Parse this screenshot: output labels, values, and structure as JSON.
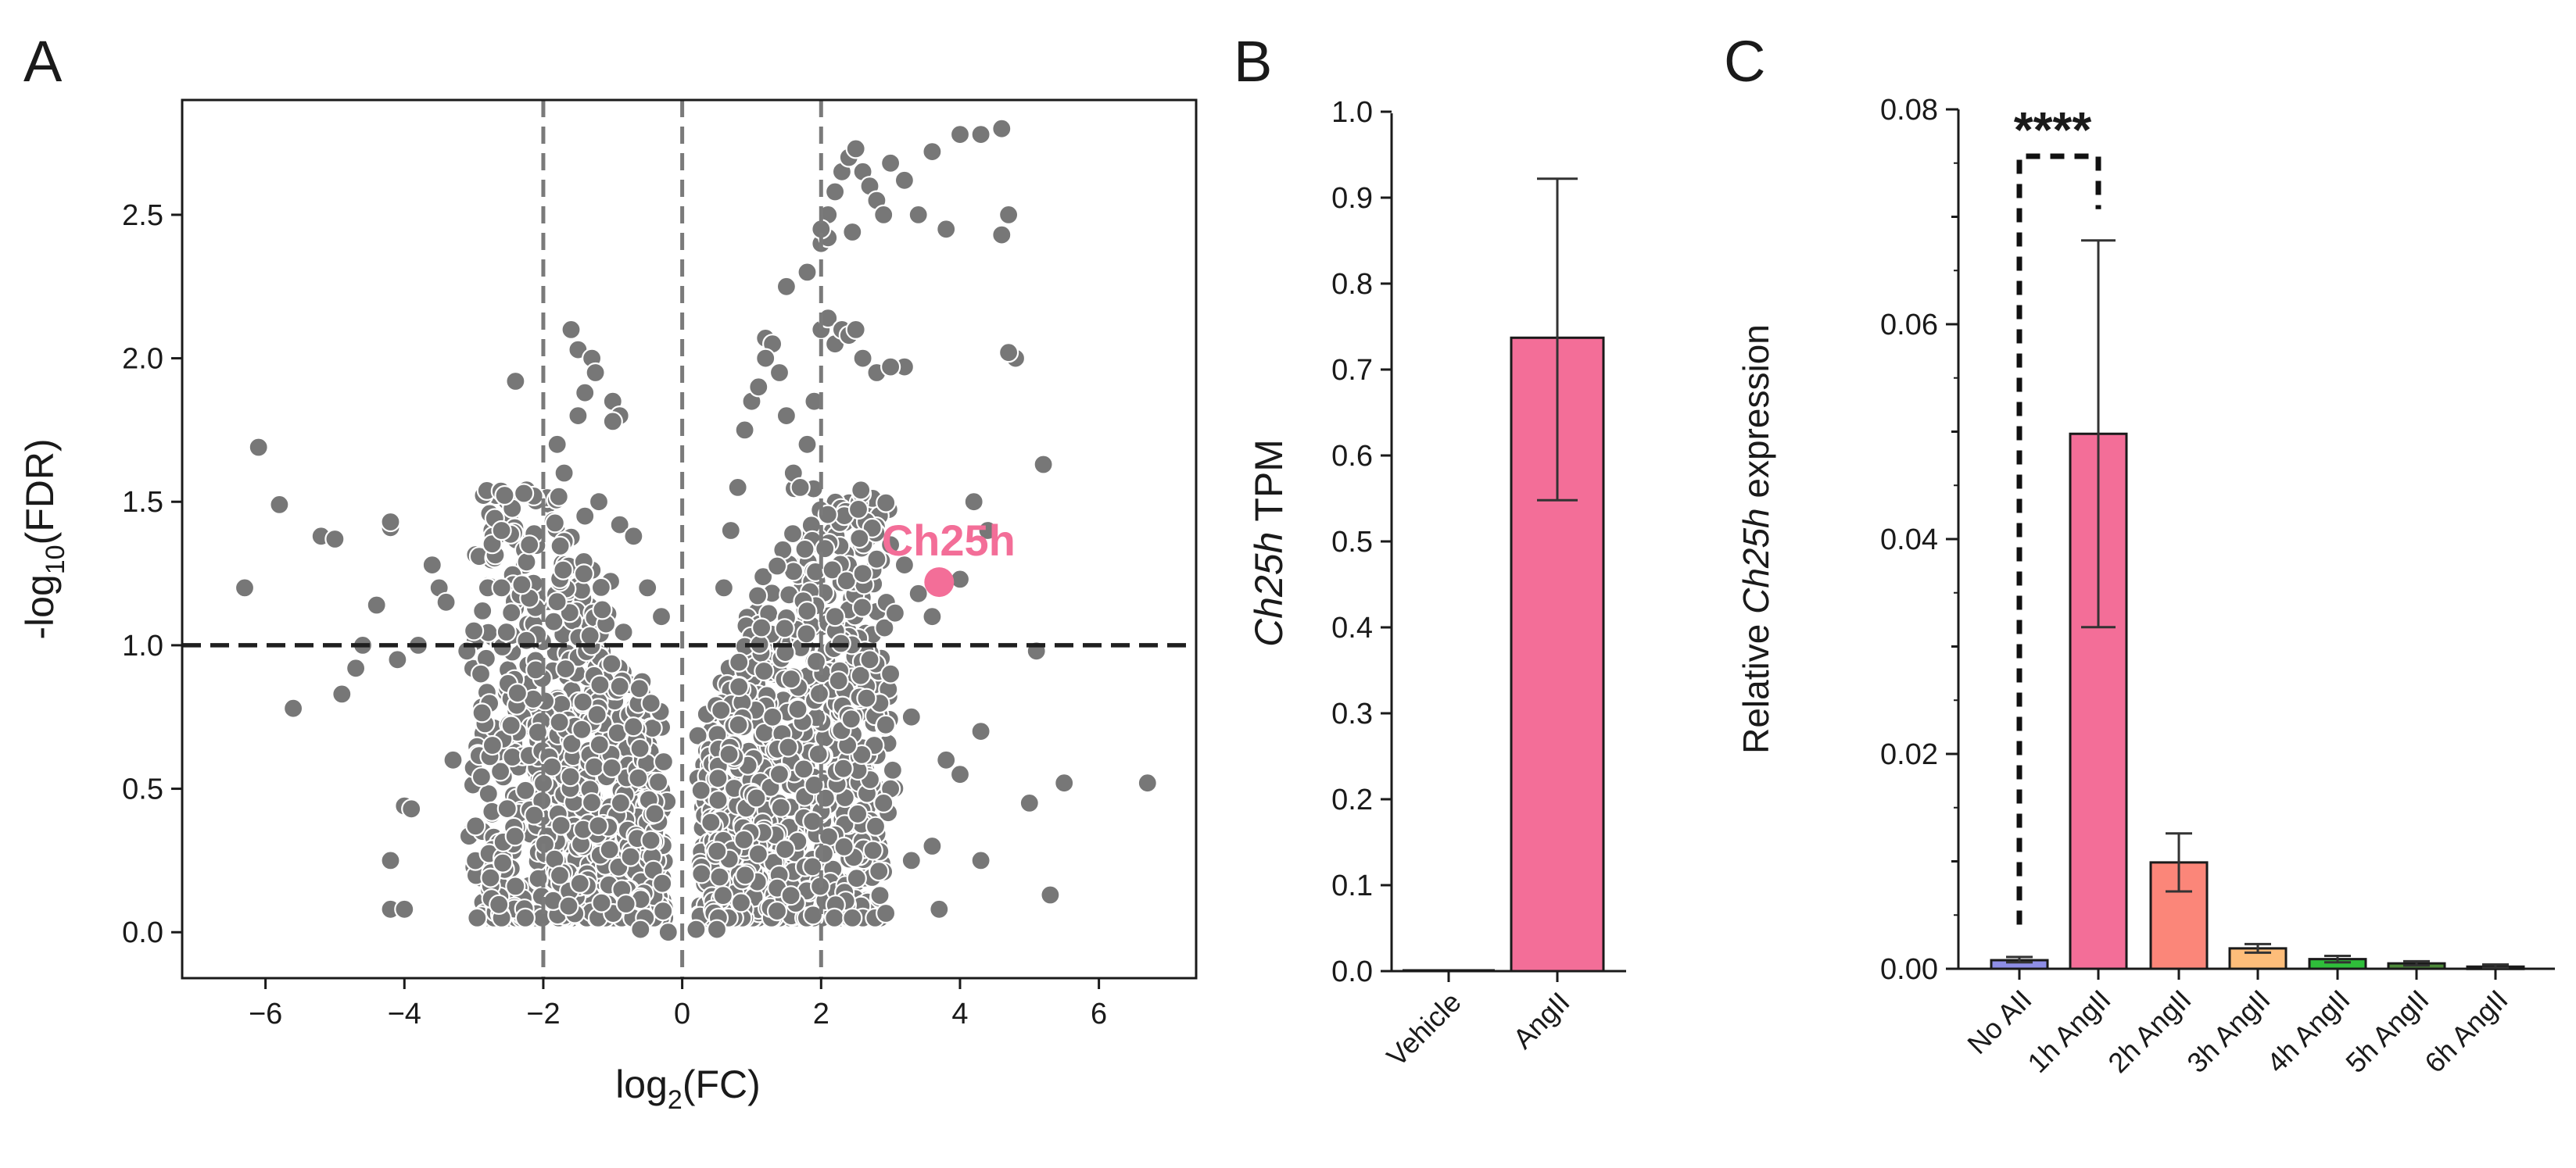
{
  "panels": {
    "a": {
      "letter": "A"
    },
    "b": {
      "letter": "B"
    },
    "c": {
      "letter": "C"
    }
  },
  "chart_data": [
    {
      "type": "scatter",
      "panel": "A",
      "xlabel_main": "log",
      "xlabel_sub": "2",
      "xlabel_tail": "(FC)",
      "ylabel_main": "-log",
      "ylabel_sub": "10",
      "ylabel_tail": "(FDR)",
      "xlim": [
        -7.2,
        7.4
      ],
      "ylim": [
        -0.16,
        2.9
      ],
      "xticks": [
        -6,
        -4,
        -2,
        0,
        2,
        4,
        6
      ],
      "xtick_labels": [
        "−6",
        "−4",
        "−2",
        "0",
        "2",
        "4",
        "6"
      ],
      "yticks": [
        0.0,
        0.5,
        1.0,
        1.5,
        2.0,
        2.5
      ],
      "ytick_labels": [
        "0.0",
        "0.5",
        "1.0",
        "1.5",
        "2.0",
        "2.5"
      ],
      "threshold_lines": {
        "x": [
          -2,
          0,
          2
        ],
        "y": 1.0
      },
      "point_color": "#777777",
      "highlight": {
        "label": "Ch25h",
        "x": 3.7,
        "y": 1.22,
        "color": "#f36e98"
      },
      "points": [
        [
          -6.3,
          1.2
        ],
        [
          -6.1,
          1.69
        ],
        [
          -5.8,
          1.49
        ],
        [
          -5.6,
          0.78
        ],
        [
          -5.2,
          1.38
        ],
        [
          -5.0,
          1.37
        ],
        [
          -4.9,
          0.83
        ],
        [
          -4.7,
          0.92
        ],
        [
          -4.6,
          1.0
        ],
        [
          -4.4,
          1.14
        ],
        [
          -4.2,
          1.41
        ],
        [
          -4.2,
          1.43
        ],
        [
          -4.1,
          0.95
        ],
        [
          -4.0,
          0.44
        ],
        [
          -3.9,
          0.43
        ],
        [
          -3.8,
          1.0
        ],
        [
          -4.2,
          0.25
        ],
        [
          -4.2,
          0.08
        ],
        [
          -4.0,
          0.08
        ],
        [
          -3.6,
          1.28
        ],
        [
          -3.5,
          1.2
        ],
        [
          -3.4,
          1.15
        ],
        [
          -3.3,
          0.6
        ],
        [
          -3.1,
          0.98
        ],
        [
          -3.0,
          1.05
        ],
        [
          -2.9,
          0.9
        ],
        [
          -2.8,
          1.2
        ],
        [
          -2.6,
          1.4
        ],
        [
          -2.4,
          1.92
        ],
        [
          -1.6,
          2.1
        ],
        [
          -1.5,
          2.03
        ],
        [
          -1.3,
          2.0
        ],
        [
          -1.25,
          1.95
        ],
        [
          -1.4,
          1.88
        ],
        [
          -1.5,
          1.8
        ],
        [
          -1.0,
          1.85
        ],
        [
          -0.9,
          1.8
        ],
        [
          -1.0,
          1.78
        ],
        [
          -1.8,
          1.7
        ],
        [
          -1.7,
          1.6
        ],
        [
          -1.4,
          1.45
        ],
        [
          -1.2,
          1.5
        ],
        [
          -0.9,
          1.42
        ],
        [
          -0.7,
          1.38
        ],
        [
          -0.5,
          1.2
        ],
        [
          -0.3,
          1.1
        ],
        [
          -2.2,
          1.35
        ],
        [
          -2.6,
          1.2
        ],
        [
          0.6,
          1.2
        ],
        [
          0.7,
          1.4
        ],
        [
          0.8,
          1.55
        ],
        [
          0.9,
          1.75
        ],
        [
          1.0,
          1.85
        ],
        [
          1.1,
          1.9
        ],
        [
          1.2,
          2.07
        ],
        [
          1.3,
          2.05
        ],
        [
          1.4,
          1.95
        ],
        [
          1.5,
          1.8
        ],
        [
          1.6,
          1.6
        ],
        [
          1.7,
          1.55
        ],
        [
          1.8,
          1.7
        ],
        [
          1.9,
          1.85
        ],
        [
          2.0,
          2.1
        ],
        [
          2.1,
          2.14
        ],
        [
          2.2,
          2.05
        ],
        [
          2.3,
          2.1
        ],
        [
          2.4,
          2.08
        ],
        [
          2.5,
          2.1
        ],
        [
          2.6,
          2.0
        ],
        [
          2.8,
          1.95
        ],
        [
          1.8,
          2.3
        ],
        [
          2.0,
          2.4
        ],
        [
          2.1,
          2.5
        ],
        [
          2.2,
          2.58
        ],
        [
          2.3,
          2.65
        ],
        [
          2.4,
          2.7
        ],
        [
          2.5,
          2.73
        ],
        [
          2.6,
          2.65
        ],
        [
          2.7,
          2.6
        ],
        [
          2.8,
          2.55
        ],
        [
          2.9,
          2.5
        ],
        [
          2.45,
          2.44
        ],
        [
          2.1,
          2.42
        ],
        [
          2.0,
          2.45
        ],
        [
          1.5,
          2.25
        ],
        [
          1.2,
          2.0
        ],
        [
          3.0,
          2.68
        ],
        [
          3.2,
          2.62
        ],
        [
          3.4,
          2.5
        ],
        [
          3.6,
          2.72
        ],
        [
          4.0,
          2.78
        ],
        [
          4.3,
          2.78
        ],
        [
          4.6,
          2.8
        ],
        [
          3.8,
          2.45
        ],
        [
          4.6,
          2.43
        ],
        [
          4.7,
          2.5
        ],
        [
          4.8,
          2.0
        ],
        [
          4.7,
          2.02
        ],
        [
          3.2,
          1.97
        ],
        [
          3.0,
          1.97
        ],
        [
          2.2,
          1.1
        ],
        [
          2.6,
          1.25
        ],
        [
          2.8,
          1.3
        ],
        [
          3.0,
          1.35
        ],
        [
          3.2,
          1.28
        ],
        [
          3.4,
          1.18
        ],
        [
          3.6,
          1.1
        ],
        [
          4.0,
          1.23
        ],
        [
          4.2,
          1.5
        ],
        [
          4.4,
          1.4
        ],
        [
          5.1,
          0.98
        ],
        [
          5.2,
          1.63
        ],
        [
          5.0,
          0.45
        ],
        [
          5.5,
          0.52
        ],
        [
          6.7,
          0.52
        ],
        [
          5.3,
          0.13
        ],
        [
          4.3,
          0.25
        ],
        [
          3.7,
          0.08
        ],
        [
          3.6,
          0.3
        ],
        [
          3.3,
          0.25
        ],
        [
          3.0,
          0.5
        ],
        [
          2.9,
          0.45
        ],
        [
          4.0,
          0.55
        ],
        [
          4.3,
          0.7
        ],
        [
          3.8,
          0.6
        ],
        [
          3.3,
          0.75
        ],
        [
          3.0,
          0.9
        ],
        [
          2.7,
          0.95
        ],
        [
          -0.2,
          0.0
        ],
        [
          0.2,
          0.01
        ],
        [
          0.5,
          0.01
        ],
        [
          -0.6,
          0.01
        ]
      ]
    },
    {
      "type": "bar",
      "panel": "B",
      "categories": [
        "Vehicle",
        "AngII"
      ],
      "values": [
        0.0,
        0.737
      ],
      "error_low": [
        0.0,
        0.548
      ],
      "error_high": [
        0.0,
        0.922
      ],
      "bar_colors": [
        "#f36e98",
        "#f36e98"
      ],
      "ylabel_italic": "Ch25h",
      "ylabel_rest": " TPM",
      "ylim": [
        0.0,
        1.0
      ],
      "yticks": [
        0.0,
        0.1,
        0.2,
        0.3,
        0.4,
        0.5,
        0.6,
        0.7,
        0.8,
        0.9,
        1.0
      ],
      "ytick_labels": [
        "0.0",
        "0.1",
        "0.2",
        "0.3",
        "0.4",
        "0.5",
        "0.6",
        "0.7",
        "0.8",
        "0.9",
        "1.0"
      ]
    },
    {
      "type": "bar",
      "panel": "C",
      "categories": [
        "No AII",
        "1h AngII",
        "2h AngII",
        "3h AngII",
        "4h AngII",
        "5h AngII",
        "6h AngII"
      ],
      "values": [
        0.0008,
        0.0498,
        0.0099,
        0.0019,
        0.0009,
        0.0005,
        0.0002
      ],
      "error_low": [
        0.0006,
        0.0318,
        0.0072,
        0.0015,
        0.0006,
        0.0003,
        0.0001
      ],
      "error_high": [
        0.0011,
        0.0678,
        0.0126,
        0.0023,
        0.0012,
        0.0007,
        0.0004
      ],
      "bar_colors": [
        "#8e8ee6",
        "#f36e98",
        "#fb8679",
        "#fdbd7a",
        "#2fbe3a",
        "#4d8a3a",
        "#8a8a8a"
      ],
      "ylabel_pre": "Relative ",
      "ylabel_italic": "Ch25h",
      "ylabel_post": " expression",
      "ylim": [
        0.0,
        0.08
      ],
      "yticks": [
        0.0,
        0.02,
        0.04,
        0.06,
        0.08
      ],
      "ytick_labels": [
        "0.00",
        "0.02",
        "0.04",
        "0.06",
        "0.08"
      ],
      "significance": {
        "label": "****",
        "from": 0,
        "to": 1
      }
    }
  ]
}
